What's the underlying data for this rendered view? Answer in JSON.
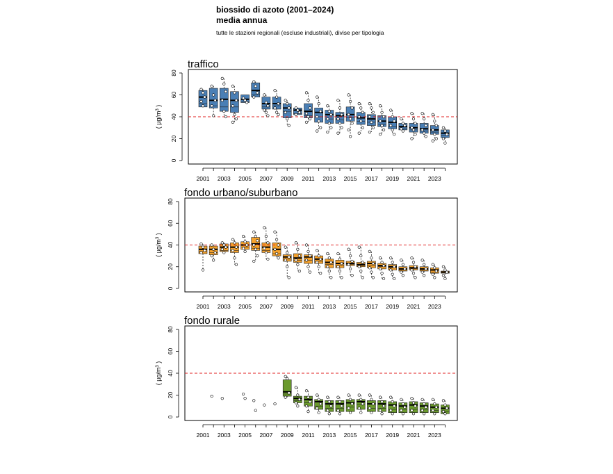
{
  "header": {
    "title": "biossido di azoto (2001–2024)",
    "subtitle": "media annua",
    "note": "tutte le stazioni regionali (escluse industriali), divise per tipologia"
  },
  "chart_data": [
    {
      "type": "boxplot",
      "title": "traffico",
      "ylabel": "( µg/m3 )",
      "ylim": [
        0,
        80
      ],
      "yticks": [
        0,
        20,
        40,
        60,
        80
      ],
      "xticks": [
        "2001",
        "2003",
        "2005",
        "2007",
        "2009",
        "2011",
        "2013",
        "2015",
        "2017",
        "2019",
        "2021",
        "2023"
      ],
      "limit_line": 40,
      "color": "#4a7fb5",
      "years": [
        2001,
        2002,
        2003,
        2004,
        2005,
        2006,
        2007,
        2008,
        2009,
        2010,
        2011,
        2012,
        2013,
        2014,
        2015,
        2016,
        2017,
        2018,
        2019,
        2020,
        2021,
        2022,
        2023,
        2024
      ],
      "boxes": [
        [
          49,
          52,
          58,
          64
        ],
        [
          48,
          50,
          55,
          66
        ],
        [
          45,
          49,
          56,
          66
        ],
        [
          44,
          49,
          55,
          63
        ],
        [
          53,
          54,
          56,
          60
        ],
        [
          58,
          60,
          64,
          71
        ],
        [
          47,
          49,
          52,
          58
        ],
        [
          47,
          50,
          52,
          58
        ],
        [
          39,
          45,
          48,
          52
        ],
        [
          42,
          43,
          46,
          48
        ],
        [
          39,
          41,
          45,
          52
        ],
        [
          35,
          40,
          44,
          48
        ],
        [
          34,
          38,
          42,
          46
        ],
        [
          34,
          37,
          41,
          44
        ],
        [
          36,
          39,
          42,
          49
        ],
        [
          33,
          36,
          39,
          44
        ],
        [
          32,
          35,
          38,
          42
        ],
        [
          31,
          33,
          36,
          41
        ],
        [
          29,
          31,
          35,
          40
        ],
        [
          28,
          29,
          31,
          34
        ],
        [
          26,
          28,
          30,
          34
        ],
        [
          25,
          27,
          29,
          34
        ],
        [
          24,
          26,
          28,
          32
        ],
        [
          21,
          23,
          25,
          28
        ]
      ],
      "points": [
        [
          65,
          62,
          58,
          54,
          50
        ],
        [
          68,
          60,
          55,
          50,
          41
        ],
        [
          75,
          70,
          63,
          55,
          45,
          40
        ],
        [
          68,
          62,
          55,
          50,
          42,
          38,
          35
        ],
        [
          57,
          55,
          53
        ],
        [
          72,
          68,
          62,
          58
        ],
        [
          60,
          53,
          50,
          46,
          44,
          41
        ],
        [
          64,
          58,
          52,
          48,
          44,
          42
        ],
        [
          55,
          52,
          48,
          44,
          38,
          32
        ],
        [
          48,
          46,
          44,
          42
        ],
        [
          62,
          55,
          48,
          43,
          40,
          38,
          35
        ],
        [
          58,
          52,
          45,
          40,
          36,
          30,
          27
        ],
        [
          50,
          45,
          42,
          38,
          34,
          30,
          26
        ],
        [
          55,
          48,
          42,
          38,
          34,
          30,
          25
        ],
        [
          60,
          54,
          48,
          42,
          38,
          34,
          28,
          22
        ],
        [
          52,
          48,
          44,
          40,
          36,
          30,
          25
        ],
        [
          52,
          48,
          44,
          40,
          35,
          30,
          26
        ],
        [
          50,
          44,
          40,
          36,
          32,
          28,
          24
        ],
        [
          46,
          40,
          36,
          32,
          28,
          24
        ],
        [
          38,
          34,
          32,
          29,
          27
        ],
        [
          43,
          38,
          34,
          30,
          28,
          24,
          20
        ],
        [
          43,
          38,
          32,
          28,
          25,
          22
        ],
        [
          42,
          36,
          32,
          28,
          24,
          20,
          18
        ],
        [
          30,
          27,
          24,
          20,
          16
        ]
      ]
    },
    {
      "type": "boxplot",
      "title": "fondo urbano/suburbano",
      "ylabel": "( µg/m3 )",
      "ylim": [
        0,
        80
      ],
      "yticks": [
        0,
        20,
        40,
        60,
        80
      ],
      "xticks": [
        "2001",
        "2003",
        "2005",
        "2007",
        "2009",
        "2011",
        "2013",
        "2015",
        "2017",
        "2019",
        "2021",
        "2023"
      ],
      "limit_line": 40,
      "color": "#f5a22c",
      "years": [
        2001,
        2002,
        2003,
        2004,
        2005,
        2006,
        2007,
        2008,
        2009,
        2010,
        2011,
        2012,
        2013,
        2014,
        2015,
        2016,
        2017,
        2018,
        2019,
        2020,
        2021,
        2022,
        2023,
        2024
      ],
      "boxes": [
        [
          32,
          34,
          36,
          39
        ],
        [
          31,
          33,
          36,
          39
        ],
        [
          34,
          35,
          38,
          41
        ],
        [
          33,
          35,
          38,
          42
        ],
        [
          36,
          38,
          40,
          43
        ],
        [
          35,
          37,
          41,
          47
        ],
        [
          33,
          35,
          38,
          42
        ],
        [
          30,
          32,
          36,
          42
        ],
        [
          25,
          27,
          29,
          31
        ],
        [
          24,
          26,
          28,
          32
        ],
        [
          23,
          26,
          29,
          31
        ],
        [
          23,
          25,
          27,
          30
        ],
        [
          19,
          22,
          24,
          27
        ],
        [
          19,
          21,
          23,
          26
        ],
        [
          21,
          22,
          23,
          25
        ],
        [
          20,
          21,
          22,
          24
        ],
        [
          19,
          21,
          23,
          25
        ],
        [
          18,
          20,
          21,
          23
        ],
        [
          17,
          19,
          20,
          22
        ],
        [
          16,
          17,
          18,
          20
        ],
        [
          17,
          18,
          19,
          21
        ],
        [
          16,
          17,
          18,
          20
        ],
        [
          14,
          15,
          17,
          19
        ],
        [
          14,
          15,
          15,
          16
        ]
      ],
      "points": [
        [
          41,
          38,
          35,
          33,
          17
        ],
        [
          40,
          36,
          33,
          30,
          26
        ],
        [
          42,
          40,
          38,
          36,
          33
        ],
        [
          45,
          42,
          38,
          35,
          28,
          22
        ],
        [
          48,
          43,
          40,
          37,
          34
        ],
        [
          52,
          48,
          44,
          40,
          36,
          30,
          25
        ],
        [
          56,
          48,
          42,
          37,
          33,
          27
        ],
        [
          52,
          45,
          40,
          36,
          32,
          28
        ],
        [
          38,
          33,
          29,
          26,
          20,
          10
        ],
        [
          42,
          36,
          30,
          26,
          22,
          16
        ],
        [
          40,
          34,
          30,
          26,
          20,
          15
        ],
        [
          35,
          30,
          27,
          24,
          20,
          14
        ],
        [
          32,
          28,
          24,
          20,
          16,
          10
        ],
        [
          32,
          27,
          23,
          20,
          16,
          10
        ],
        [
          36,
          30,
          25,
          22,
          18,
          12
        ],
        [
          38,
          30,
          24,
          20,
          16,
          10
        ],
        [
          34,
          28,
          23,
          19,
          15,
          10
        ],
        [
          28,
          24,
          21,
          18,
          14,
          9
        ],
        [
          28,
          24,
          20,
          17,
          13,
          9
        ],
        [
          26,
          22,
          18,
          15,
          12
        ],
        [
          28,
          24,
          20,
          17,
          14,
          10
        ],
        [
          26,
          22,
          18,
          15,
          12
        ],
        [
          22,
          19,
          16,
          13,
          10
        ],
        [
          20,
          17,
          15,
          12,
          9
        ]
      ]
    },
    {
      "type": "boxplot",
      "title": "fondo rurale",
      "ylabel": "( µg/m3 )",
      "ylim": [
        0,
        80
      ],
      "yticks": [
        0,
        20,
        40,
        60,
        80
      ],
      "xticks": [
        "2001",
        "2003",
        "2005",
        "2007",
        "2009",
        "2011",
        "2013",
        "2015",
        "2017",
        "2019",
        "2021",
        "2023"
      ],
      "limit_line": 40,
      "color": "#6b9a2d",
      "years": [
        2001,
        2002,
        2003,
        2004,
        2005,
        2006,
        2007,
        2008,
        2009,
        2010,
        2011,
        2012,
        2013,
        2014,
        2015,
        2016,
        2017,
        2018,
        2019,
        2020,
        2021,
        2022,
        2023,
        2024
      ],
      "boxes": [
        null,
        null,
        null,
        null,
        null,
        null,
        null,
        null,
        [
          19,
          21,
          23,
          34
        ],
        [
          13,
          15,
          17,
          19
        ],
        [
          10,
          13,
          16,
          19
        ],
        [
          7,
          10,
          14,
          16
        ],
        [
          5,
          8,
          12,
          15
        ],
        [
          5,
          8,
          12,
          15
        ],
        [
          5,
          9,
          13,
          16
        ],
        [
          7,
          11,
          14,
          16
        ],
        [
          5,
          8,
          12,
          15
        ],
        [
          5,
          8,
          12,
          15
        ],
        [
          4,
          7,
          11,
          14
        ],
        [
          4,
          7,
          10,
          13
        ],
        [
          4,
          7,
          11,
          14
        ],
        [
          4,
          7,
          10,
          13
        ],
        [
          4,
          6,
          9,
          12
        ],
        [
          3,
          5,
          8,
          11
        ]
      ],
      "points": [
        [],
        [
          19
        ],
        [
          17
        ],
        [],
        [
          21,
          17
        ],
        [
          15,
          6
        ],
        [
          11
        ],
        [
          12
        ],
        [
          37,
          35,
          22,
          18
        ],
        [
          27,
          20,
          16,
          13,
          10
        ],
        [
          24,
          18,
          14,
          10,
          5
        ],
        [
          20,
          16,
          12,
          8,
          4
        ],
        [
          18,
          14,
          10,
          6,
          3
        ],
        [
          18,
          14,
          10,
          6,
          3
        ],
        [
          20,
          16,
          12,
          8,
          4
        ],
        [
          20,
          16,
          12,
          8,
          4
        ],
        [
          20,
          16,
          12,
          8,
          4
        ],
        [
          18,
          14,
          10,
          6,
          3
        ],
        [
          18,
          14,
          10,
          6,
          3
        ],
        [
          16,
          12,
          9,
          6,
          3
        ],
        [
          17,
          13,
          10,
          6,
          3
        ],
        [
          16,
          12,
          9,
          6,
          3
        ],
        [
          16,
          12,
          9,
          6,
          3
        ],
        [
          15,
          11,
          8,
          5,
          3
        ]
      ]
    }
  ]
}
